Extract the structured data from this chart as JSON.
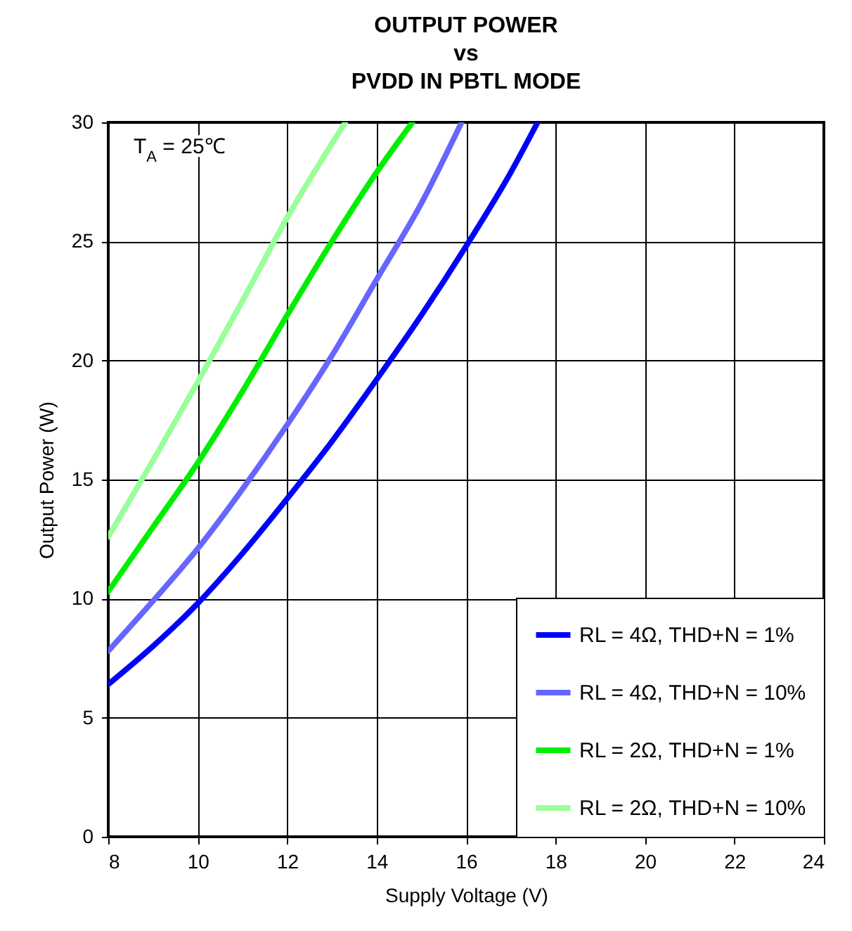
{
  "chart_data": {
    "type": "line",
    "title": "OUTPUT POWER\nvs\nPVDD IN PBTL MODE",
    "xlabel": "Supply Voltage (V)",
    "ylabel": "Output Power (W)",
    "xlim": [
      8,
      24
    ],
    "xticks": [
      8,
      10,
      12,
      14,
      16,
      18,
      20,
      22,
      24
    ],
    "ylim": [
      0,
      30
    ],
    "yticks": [
      0,
      5,
      10,
      15,
      20,
      25,
      30
    ],
    "grid": true,
    "legend": "bottom right",
    "annotations": [
      "T$_{A}$ = 25℃"
    ],
    "series": [
      {
        "name": "RL = 4Ω, THD+N = 1%",
        "color": "#0000ff",
        "x": [
          8,
          9,
          10,
          11,
          12,
          13,
          14,
          15,
          16,
          17,
          17.6
        ],
        "values": [
          6.4,
          8.0,
          9.8,
          11.9,
          14.2,
          16.6,
          19.2,
          21.9,
          24.8,
          27.9,
          30
        ]
      },
      {
        "name": "RL = 4Ω, THD+N = 10%",
        "color": "#6666ff",
        "x": [
          8,
          9,
          10,
          11,
          12,
          13,
          14,
          15,
          15.9
        ],
        "values": [
          7.8,
          9.9,
          12.1,
          14.6,
          17.3,
          20.2,
          23.4,
          26.6,
          30
        ]
      },
      {
        "name": "RL = 2Ω, THD+N = 1%",
        "color": "#00ee00",
        "x": [
          8,
          9,
          10,
          11,
          12,
          13,
          14,
          14.8
        ],
        "values": [
          10.3,
          13.0,
          15.7,
          18.7,
          21.9,
          25.0,
          27.9,
          30
        ]
      },
      {
        "name": "RL = 2Ω, THD+N = 10%",
        "color": "#99ff99",
        "x": [
          8,
          9,
          10,
          11,
          12,
          13.3
        ],
        "values": [
          12.6,
          15.8,
          19.1,
          22.5,
          26.0,
          30
        ]
      }
    ]
  }
}
